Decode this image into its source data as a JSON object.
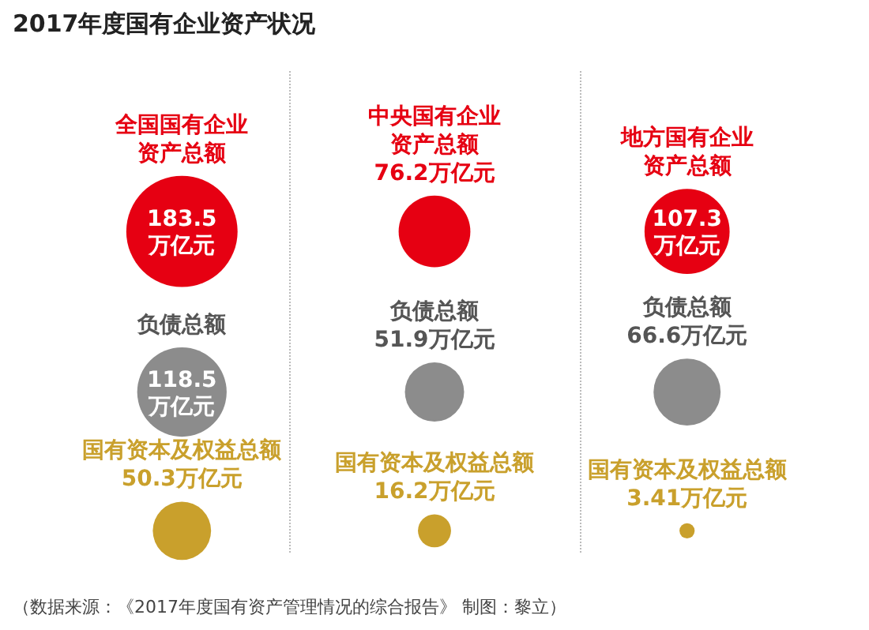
{
  "chart_data": {
    "type": "other",
    "title": "2017年度国有企业资产状况",
    "categories": [
      "全国国有企业",
      "中央国有企业",
      "地方国有企业"
    ],
    "series": [
      {
        "name": "资产总额",
        "color": "#e60012",
        "values": [
          183.5,
          76.2,
          107.3
        ],
        "value_labels": [
          "183.5万亿元",
          "76.2万亿元",
          "107.3万亿元"
        ]
      },
      {
        "name": "负债总额",
        "color": "#8c8c8c",
        "values": [
          118.5,
          51.9,
          66.6
        ],
        "value_labels": [
          "118.5万亿元",
          "51.9万亿元",
          "66.6万亿元"
        ]
      },
      {
        "name": "国有资本及权益总额",
        "color": "#c9a02c",
        "values": [
          50.3,
          16.2,
          3.41
        ],
        "value_labels": [
          "50.3万亿元",
          "16.2万亿元",
          "3.41万亿元"
        ]
      }
    ],
    "legend": false,
    "annotations": [
      "（数据来源：《2017年度国有资产管理情况的综合报告》 制图：黎立）"
    ]
  }
}
